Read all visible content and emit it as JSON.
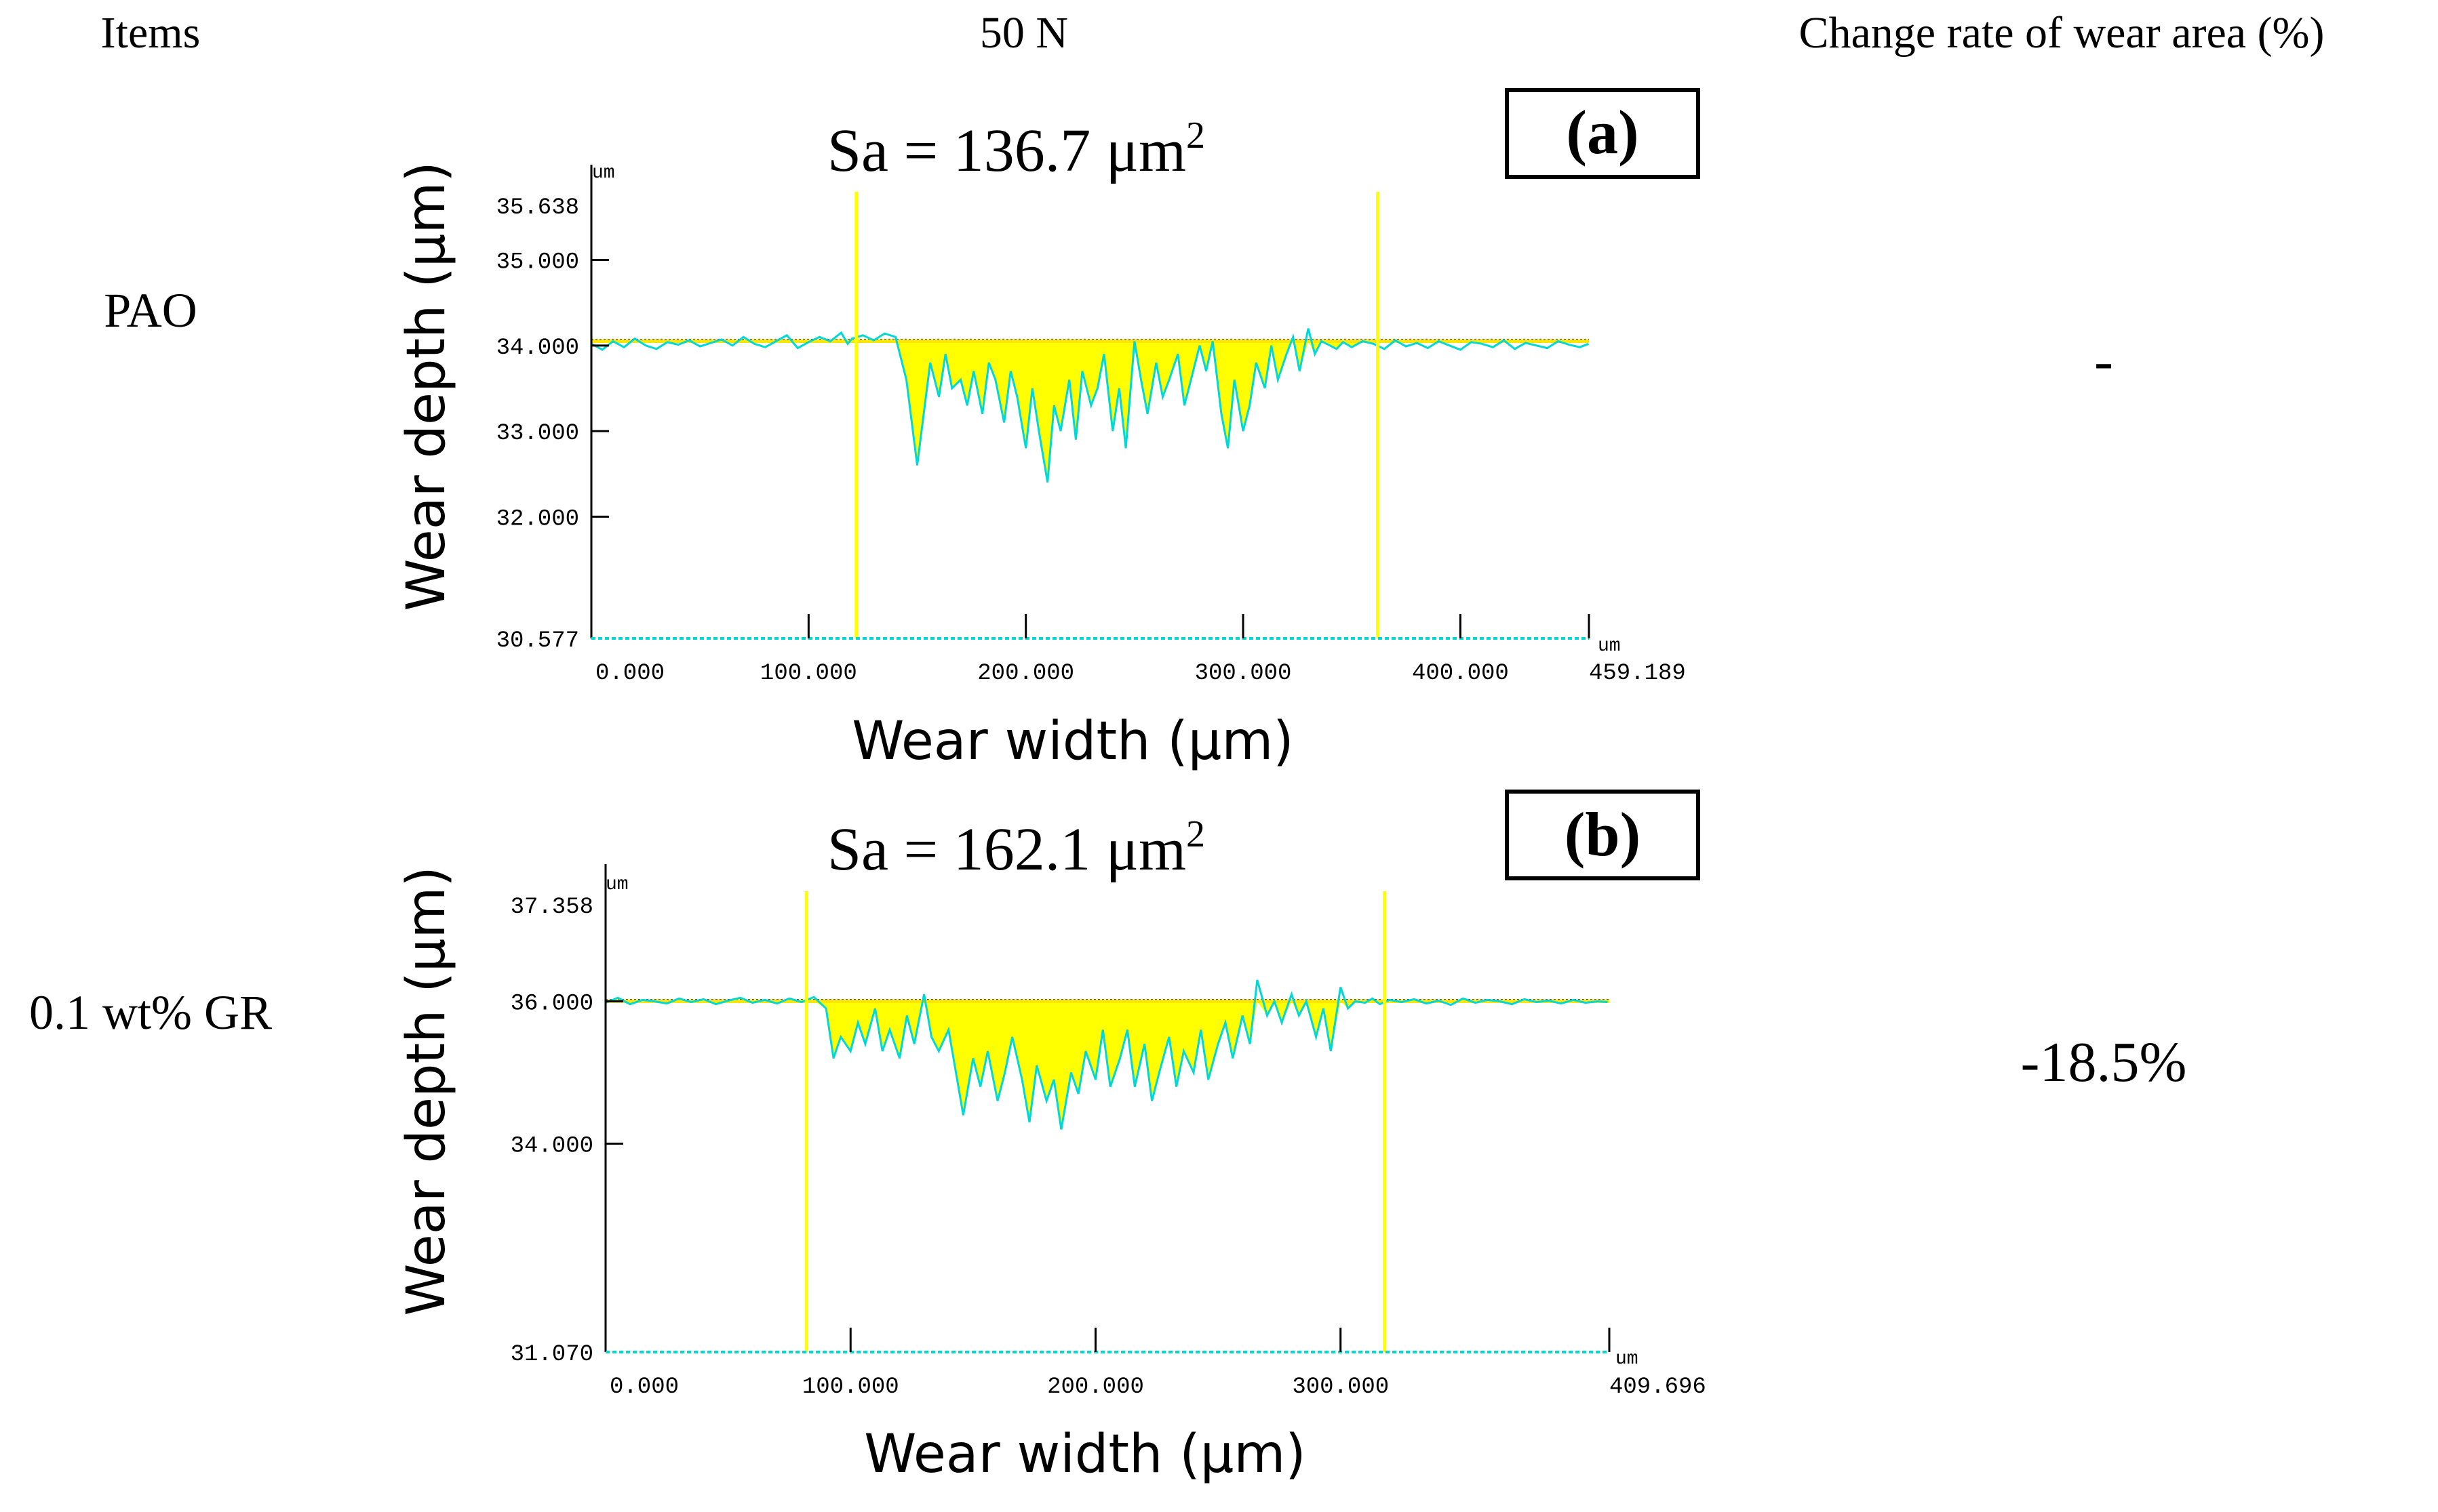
{
  "header": {
    "items": "Items",
    "load": "50 N",
    "change": "Change rate of wear area (%)"
  },
  "rows": [
    {
      "label": "PAO",
      "change_rate": "-"
    },
    {
      "label": "0.1 wt% GR",
      "change_rate": "-18.5%"
    }
  ],
  "colors": {
    "fill": "#ffff00",
    "profile": "#00d8d8",
    "baseline": "#ffe600",
    "boundary": "#ffff00",
    "axis": "#000000"
  },
  "chart_data": [
    {
      "type": "area",
      "panel": "(a)",
      "annotation": {
        "prefix": "Sa = 136.7 ",
        "unit": "μm",
        "sup": "2"
      },
      "xlabel": "Wear width (μm)",
      "ylabel": "Wear depth (μm)",
      "unit_x": "um",
      "unit_y": "um",
      "xlim": [
        0,
        459.189
      ],
      "ylim": [
        30.577,
        35.638
      ],
      "xticks": [
        0,
        100,
        200,
        300,
        400,
        459.189
      ],
      "xtick_labels": [
        "0.000",
        "100.000",
        "200.000",
        "300.000",
        "400.000",
        "459.189"
      ],
      "yticks": [
        35.638,
        35,
        34,
        33,
        32,
        30.577
      ],
      "ytick_labels": [
        "35.638",
        "35.000",
        "34.000",
        "33.000",
        "32.000",
        "30.577"
      ],
      "reference_level": 34.05,
      "boundaries_x": [
        122,
        362
      ],
      "profile": {
        "x": [
          0,
          5,
          10,
          15,
          20,
          25,
          30,
          35,
          40,
          45,
          50,
          55,
          60,
          65,
          70,
          75,
          80,
          85,
          90,
          95,
          100,
          105,
          110,
          115,
          118,
          120,
          125,
          130,
          135,
          140,
          145,
          148,
          150,
          153,
          156,
          160,
          163,
          166,
          170,
          173,
          176,
          180,
          183,
          186,
          190,
          193,
          196,
          200,
          203,
          206,
          210,
          213,
          216,
          220,
          223,
          226,
          230,
          233,
          236,
          240,
          243,
          246,
          250,
          253,
          256,
          260,
          263,
          266,
          270,
          273,
          276,
          280,
          283,
          286,
          290,
          293,
          296,
          300,
          303,
          306,
          310,
          313,
          316,
          320,
          323,
          326,
          330,
          333,
          336,
          340,
          343,
          346,
          350,
          355,
          360,
          365,
          370,
          375,
          380,
          385,
          390,
          395,
          400,
          405,
          410,
          415,
          420,
          425,
          430,
          435,
          440,
          445,
          450,
          455,
          459
        ],
        "y": [
          34.02,
          33.95,
          34.05,
          33.98,
          34.08,
          34.0,
          33.96,
          34.04,
          34.01,
          34.06,
          33.99,
          34.03,
          34.07,
          34.0,
          34.1,
          34.02,
          33.98,
          34.05,
          34.12,
          33.97,
          34.04,
          34.1,
          34.05,
          34.15,
          34.02,
          34.08,
          34.12,
          34.06,
          34.14,
          34.1,
          33.6,
          33.0,
          32.6,
          33.2,
          33.8,
          33.4,
          33.9,
          33.5,
          33.6,
          33.3,
          33.7,
          33.2,
          33.8,
          33.6,
          33.1,
          33.7,
          33.4,
          32.8,
          33.5,
          33.0,
          32.4,
          33.3,
          33.0,
          33.6,
          32.9,
          33.7,
          33.3,
          33.5,
          33.9,
          33.0,
          33.5,
          32.8,
          34.05,
          33.6,
          33.2,
          33.8,
          33.4,
          33.6,
          33.9,
          33.3,
          33.6,
          34.0,
          33.7,
          34.05,
          33.2,
          32.8,
          33.6,
          33.0,
          33.3,
          33.8,
          33.5,
          34.0,
          33.6,
          33.9,
          34.1,
          33.7,
          34.2,
          33.9,
          34.05,
          34.0,
          33.96,
          34.04,
          33.98,
          34.05,
          34.02,
          33.96,
          34.06,
          33.99,
          34.03,
          33.97,
          34.05,
          34.0,
          33.95,
          34.04,
          34.02,
          33.98,
          34.06,
          33.96,
          34.03,
          34.0,
          33.97,
          34.05,
          34.01,
          33.98,
          34.02
        ]
      }
    },
    {
      "type": "area",
      "panel": "(b)",
      "annotation": {
        "prefix": "Sa = 162.1 ",
        "unit": "μm",
        "sup": "2"
      },
      "xlabel": "Wear width (μm)",
      "ylabel": "Wear depth (μm)",
      "unit_x": "um",
      "unit_y": "um",
      "xlim": [
        0,
        409.696
      ],
      "ylim": [
        31.07,
        37.358
      ],
      "xticks": [
        0,
        100,
        200,
        300,
        409.696
      ],
      "xtick_labels": [
        "0.000",
        "100.000",
        "200.000",
        "300.000",
        "409.696"
      ],
      "yticks": [
        37.358,
        36,
        34,
        31.07
      ],
      "ytick_labels": [
        "37.358",
        "36.000",
        "34.000",
        "31.070"
      ],
      "reference_level": 36.0,
      "boundaries_x": [
        82,
        318
      ],
      "profile": {
        "x": [
          0,
          5,
          10,
          15,
          20,
          25,
          30,
          35,
          40,
          45,
          50,
          55,
          60,
          65,
          70,
          75,
          80,
          85,
          90,
          93,
          96,
          100,
          103,
          106,
          110,
          113,
          116,
          120,
          123,
          126,
          130,
          133,
          136,
          140,
          143,
          146,
          150,
          153,
          156,
          160,
          163,
          166,
          170,
          173,
          176,
          180,
          183,
          186,
          190,
          193,
          196,
          200,
          203,
          206,
          210,
          213,
          216,
          220,
          223,
          226,
          230,
          233,
          236,
          240,
          243,
          246,
          250,
          253,
          256,
          260,
          263,
          266,
          270,
          273,
          276,
          280,
          283,
          286,
          290,
          293,
          296,
          300,
          303,
          306,
          310,
          313,
          316,
          320,
          325,
          330,
          335,
          340,
          345,
          350,
          355,
          360,
          365,
          370,
          375,
          380,
          385,
          390,
          395,
          400,
          405,
          409
        ],
        "y": [
          35.98,
          36.05,
          35.96,
          36.02,
          36.0,
          35.97,
          36.04,
          35.99,
          36.03,
          35.96,
          36.01,
          36.05,
          35.98,
          36.02,
          35.97,
          36.04,
          35.99,
          36.06,
          35.9,
          35.2,
          35.5,
          35.3,
          35.7,
          35.4,
          35.9,
          35.3,
          35.6,
          35.2,
          35.8,
          35.4,
          36.1,
          35.5,
          35.3,
          35.6,
          35.0,
          34.4,
          35.2,
          34.8,
          35.3,
          34.6,
          35.0,
          35.5,
          34.9,
          34.3,
          35.1,
          34.6,
          34.9,
          34.2,
          35.0,
          34.7,
          35.3,
          34.9,
          35.6,
          34.8,
          35.2,
          35.6,
          34.8,
          35.4,
          34.6,
          35.0,
          35.5,
          34.8,
          35.3,
          35.0,
          35.6,
          34.9,
          35.4,
          35.7,
          35.2,
          35.8,
          35.4,
          36.3,
          35.8,
          36.0,
          35.7,
          36.1,
          35.8,
          36.0,
          35.5,
          35.9,
          35.3,
          36.2,
          35.9,
          36.0,
          35.98,
          36.04,
          35.96,
          36.02,
          35.99,
          36.03,
          35.97,
          36.01,
          35.95,
          36.04,
          35.98,
          36.02,
          36.0,
          35.96,
          36.03,
          35.99,
          36.01,
          35.97,
          36.02,
          35.98,
          36.0,
          35.99
        ]
      }
    }
  ]
}
